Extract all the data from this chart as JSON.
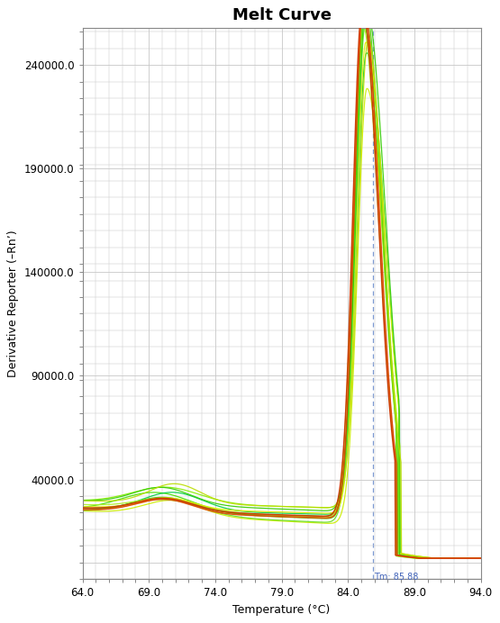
{
  "title": "Melt Curve",
  "xlabel": "Temperature (°C)",
  "ylabel": "Derivative Reporter (–Rn’)",
  "xlim": [
    64.0,
    94.0
  ],
  "ylim": [
    -8000,
    258000
  ],
  "xticks": [
    64.0,
    69.0,
    74.0,
    79.0,
    84.0,
    89.0,
    94.0
  ],
  "yticks": [
    0,
    40000,
    90000,
    140000,
    190000,
    240000
  ],
  "ytick_labels": [
    "",
    "40000.0",
    "90000.0",
    "140000.0",
    "190000.0",
    "240000.0"
  ],
  "tm_x": 85.88,
  "tm_label": "Tm: 85.88",
  "background_color": "#ffffff",
  "grid_color": "#c8c8c8",
  "n_green_curves": 10,
  "n_red_curves": 2,
  "title_fontsize": 13,
  "axis_label_fontsize": 9,
  "tick_fontsize": 8.5
}
